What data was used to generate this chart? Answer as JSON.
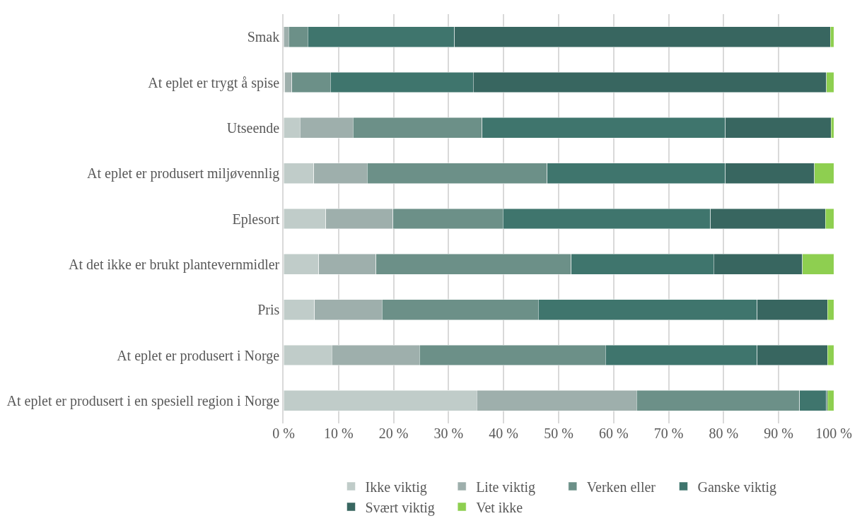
{
  "chart_data": {
    "type": "bar",
    "orientation": "horizontal",
    "stacked": true,
    "categories": [
      "Smak",
      "At eplet er trygt å spise",
      "Utseende",
      "At eplet er produsert miljøvennlig",
      "Eplesort",
      "At det ikke er brukt plantevernmidler",
      "Pris",
      "At eplet er produsert i Norge",
      "At eplet er produsert i en spesiell region i Norge"
    ],
    "series": [
      {
        "name": "Ikke viktig",
        "color": "#c0ccc9",
        "values": [
          0,
          0.2,
          3.0,
          5.5,
          7.7,
          6.4,
          5.6,
          8.8,
          35.1
        ]
      },
      {
        "name": "Lite viktig",
        "color": "#9eafac",
        "values": [
          0.9,
          1.3,
          9.6,
          9.7,
          12.2,
          10.4,
          12.3,
          15.9,
          29.1
        ]
      },
      {
        "name": "Verken eller",
        "color": "#6c9088",
        "values": [
          3.5,
          7.0,
          23.5,
          32.7,
          20.0,
          35.5,
          28.4,
          33.8,
          29.6
        ]
      },
      {
        "name": "Ganske viktig",
        "color": "#3f756d",
        "values": [
          26.7,
          26.0,
          44.2,
          32.4,
          37.7,
          25.9,
          39.8,
          27.6,
          4.9
        ]
      },
      {
        "name": "Svært viktig",
        "color": "#386660",
        "values": [
          68.3,
          64.2,
          19.2,
          16.2,
          20.9,
          16.1,
          12.8,
          12.8,
          0.2
        ]
      },
      {
        "name": "Vet ikke",
        "color": "#8ecf50",
        "values": [
          0.6,
          1.3,
          0.5,
          3.5,
          1.5,
          5.7,
          1.1,
          1.1,
          1.1
        ]
      }
    ],
    "xlim": [
      0,
      100
    ],
    "xticks": [
      {
        "value": 0,
        "label": "0 %"
      },
      {
        "value": 10,
        "label": "10 %"
      },
      {
        "value": 20,
        "label": "20 %"
      },
      {
        "value": 30,
        "label": "30 %"
      },
      {
        "value": 40,
        "label": "40 %"
      },
      {
        "value": 50,
        "label": "50 %"
      },
      {
        "value": 60,
        "label": "60 %"
      },
      {
        "value": 70,
        "label": "70 %"
      },
      {
        "value": 80,
        "label": "80 %"
      },
      {
        "value": 90,
        "label": "90 %"
      },
      {
        "value": 100,
        "label": "100 %"
      }
    ],
    "grid": "x",
    "legend": "bottom"
  }
}
